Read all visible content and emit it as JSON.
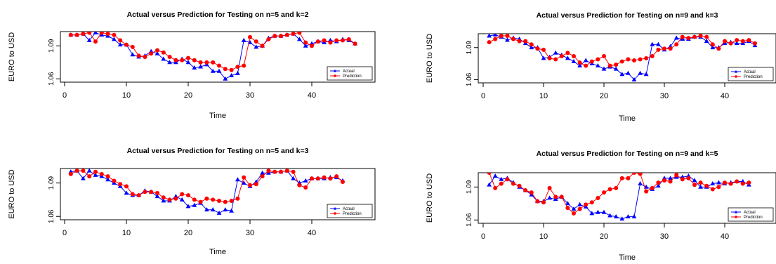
{
  "colors": {
    "actual": "#0000ff",
    "prediction": "#ff0000"
  },
  "chart_data": [
    {
      "type": "line",
      "title": "Actual versus Prediction for Testing on n=5 and k=2",
      "xlabel": "Time",
      "ylabel": "EURO to USD",
      "xticks": [
        "0",
        "10",
        "20",
        "30",
        "40"
      ],
      "yticks": [
        "1.06",
        "1.09"
      ],
      "xlim": [
        0,
        47
      ],
      "ylim": [
        1.057,
        1.103
      ],
      "legend": "bottom-right",
      "series": [
        {
          "name": "Actual",
          "marker": "triangle",
          "values": [
            1.1,
            1.1,
            1.101,
            1.095,
            1.102,
            1.1,
            1.099,
            1.096,
            1.091,
            1.091,
            1.082,
            1.08,
            1.081,
            1.085,
            1.083,
            1.078,
            1.075,
            1.075,
            1.078,
            1.075,
            1.07,
            1.071,
            1.073,
            1.067,
            1.067,
            1.06,
            1.063,
            1.065,
            1.095,
            1.093,
            1.089,
            1.09,
            1.097,
            1.099,
            1.099,
            1.1,
            1.101,
            1.096,
            1.09,
            1.092,
            1.094,
            1.093,
            1.095,
            1.094,
            1.096,
            1.095,
            1.092
          ]
        },
        {
          "name": "Prediction",
          "marker": "circle",
          "values": [
            1.1,
            1.1,
            1.101,
            1.102,
            1.094,
            1.102,
            1.101,
            1.1,
            1.095,
            1.091,
            1.089,
            1.081,
            1.08,
            1.083,
            1.086,
            1.084,
            1.08,
            1.077,
            1.077,
            1.079,
            1.077,
            1.075,
            1.075,
            1.075,
            1.072,
            1.069,
            1.068,
            1.071,
            1.072,
            1.098,
            1.094,
            1.09,
            1.096,
            1.099,
            1.099,
            1.1,
            1.101,
            1.102,
            1.093,
            1.09,
            1.094,
            1.095,
            1.093,
            1.095,
            1.095,
            1.096,
            1.092
          ]
        }
      ]
    },
    {
      "type": "line",
      "title": "Actual versus Prediction for Testing on n=9 and k=3",
      "xlabel": "Time",
      "ylabel": "EURO to USD",
      "xticks": [
        "0",
        "10",
        "20",
        "30",
        "40"
      ],
      "yticks": [
        "1.06",
        "1.09"
      ],
      "xlim": [
        0,
        47
      ],
      "ylim": [
        1.057,
        1.103
      ],
      "legend": "bottom-right",
      "series": [
        {
          "name": "Actual",
          "marker": "triangle",
          "values": [
            1.101,
            1.102,
            1.1,
            1.097,
            1.099,
            1.098,
            1.094,
            1.09,
            1.09,
            1.08,
            1.081,
            1.085,
            1.083,
            1.08,
            1.077,
            1.073,
            1.078,
            1.075,
            1.073,
            1.07,
            1.072,
            1.07,
            1.065,
            1.066,
            1.06,
            1.066,
            1.065,
            1.093,
            1.093,
            1.088,
            1.091,
            1.099,
            1.098,
            1.098,
            1.1,
            1.1,
            1.096,
            1.09,
            1.09,
            1.094,
            1.095,
            1.094,
            1.094,
            1.096,
            1.092
          ]
        },
        {
          "name": "Prediction",
          "marker": "circle",
          "values": [
            1.095,
            1.098,
            1.101,
            1.101,
            1.098,
            1.096,
            1.096,
            1.093,
            1.089,
            1.088,
            1.08,
            1.079,
            1.082,
            1.085,
            1.082,
            1.076,
            1.073,
            1.077,
            1.079,
            1.082,
            1.073,
            1.074,
            1.077,
            1.079,
            1.078,
            1.079,
            1.08,
            1.082,
            1.088,
            1.089,
            1.089,
            1.093,
            1.1,
            1.099,
            1.1,
            1.101,
            1.1,
            1.093,
            1.089,
            1.096,
            1.094,
            1.097,
            1.096,
            1.097,
            1.094
          ]
        }
      ]
    },
    {
      "type": "line",
      "title": "Actual versus Prediction for Testing on n=5 and k=3",
      "xlabel": "Time",
      "ylabel": "EURO to USD",
      "xticks": [
        "0",
        "10",
        "20",
        "30",
        "40"
      ],
      "yticks": [
        "1.06",
        "1.09"
      ],
      "xlim": [
        0,
        47
      ],
      "ylim": [
        1.057,
        1.103
      ],
      "legend": "bottom-right",
      "series": [
        {
          "name": "Actual",
          "marker": "triangle",
          "values": [
            1.1,
            1.101,
            1.094,
            1.101,
            1.097,
            1.096,
            1.093,
            1.09,
            1.087,
            1.081,
            1.079,
            1.079,
            1.083,
            1.082,
            1.078,
            1.074,
            1.074,
            1.078,
            1.075,
            1.069,
            1.07,
            1.072,
            1.066,
            1.066,
            1.063,
            1.066,
            1.065,
            1.093,
            1.09,
            1.087,
            1.091,
            1.099,
            1.099,
            1.1,
            1.1,
            1.101,
            1.094,
            1.09,
            1.092,
            1.094,
            1.094,
            1.094,
            1.095,
            1.095,
            1.092
          ]
        },
        {
          "name": "Prediction",
          "marker": "circle",
          "values": [
            1.098,
            1.101,
            1.101,
            1.096,
            1.1,
            1.098,
            1.096,
            1.092,
            1.089,
            1.087,
            1.08,
            1.079,
            1.082,
            1.082,
            1.081,
            1.077,
            1.075,
            1.076,
            1.08,
            1.079,
            1.075,
            1.073,
            1.076,
            1.075,
            1.074,
            1.073,
            1.074,
            1.076,
            1.095,
            1.088,
            1.089,
            1.096,
            1.101,
            1.1,
            1.1,
            1.101,
            1.1,
            1.088,
            1.086,
            1.094,
            1.094,
            1.095,
            1.094,
            1.096,
            1.091
          ]
        }
      ]
    },
    {
      "type": "line",
      "title": "Actual versus Prediction for Testing on n=9 and k=5",
      "xlabel": "Time",
      "ylabel": "EURO to USD",
      "xticks": [
        "0",
        "10",
        "20",
        "30",
        "40"
      ],
      "yticks": [
        "1.06",
        "1.09"
      ],
      "xlim": [
        0,
        47
      ],
      "ylim": [
        1.057,
        1.103
      ],
      "legend": "bottom-right",
      "series": [
        {
          "name": "Actual",
          "marker": "triangle",
          "values": [
            1.092,
            1.1,
            1.097,
            1.098,
            1.094,
            1.09,
            1.087,
            1.083,
            1.077,
            1.077,
            1.08,
            1.079,
            1.081,
            1.075,
            1.07,
            1.074,
            1.072,
            1.066,
            1.067,
            1.067,
            1.064,
            1.063,
            1.061,
            1.063,
            1.063,
            1.093,
            1.09,
            1.088,
            1.091,
            1.098,
            1.098,
            1.099,
            1.099,
            1.1,
            1.096,
            1.09,
            1.09,
            1.093,
            1.094,
            1.093,
            1.094,
            1.095,
            1.095,
            1.092
          ]
        },
        {
          "name": "Prediction",
          "marker": "circle",
          "values": [
            1.103,
            1.089,
            1.093,
            1.097,
            1.093,
            1.091,
            1.087,
            1.085,
            1.077,
            1.076,
            1.089,
            1.081,
            1.081,
            1.071,
            1.066,
            1.07,
            1.074,
            1.076,
            1.08,
            1.085,
            1.088,
            1.089,
            1.098,
            1.098,
            1.103,
            1.102,
            1.086,
            1.089,
            1.094,
            1.096,
            1.095,
            1.101,
            1.097,
            1.098,
            1.092,
            1.094,
            1.091,
            1.088,
            1.09,
            1.094,
            1.093,
            1.095,
            1.093,
            1.094
          ]
        }
      ]
    }
  ]
}
